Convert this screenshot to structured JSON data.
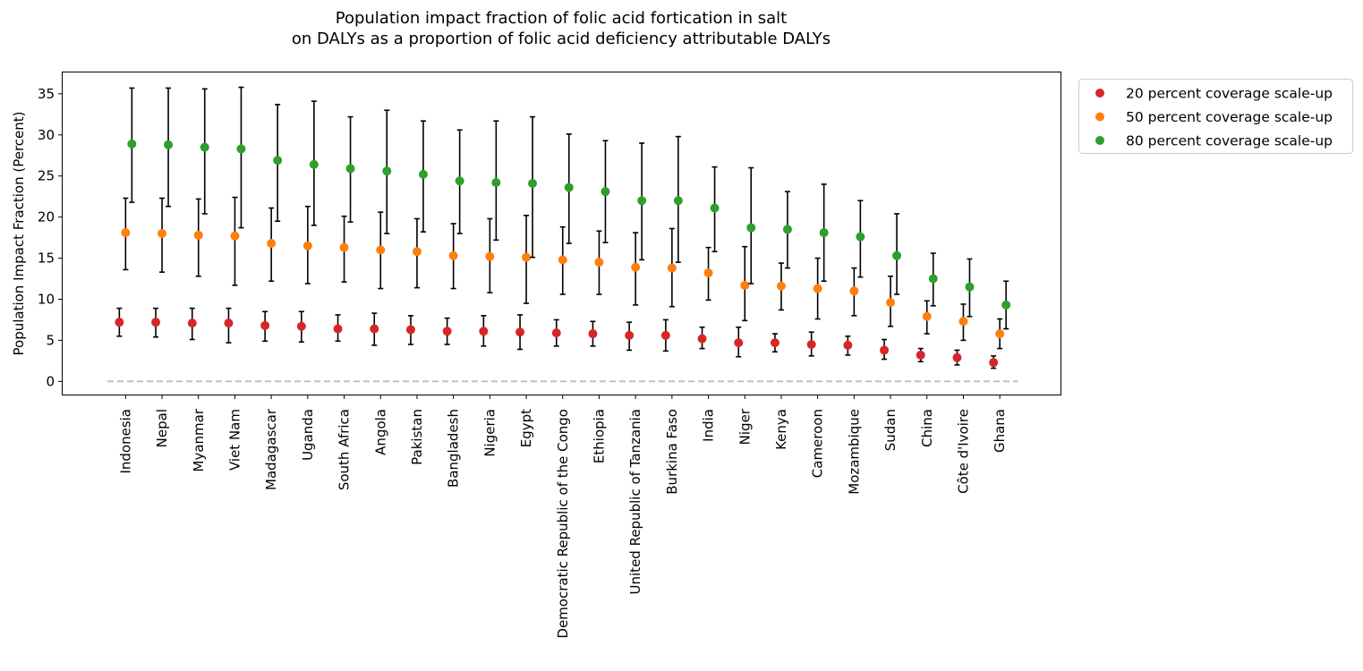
{
  "chart_data": {
    "type": "scatter",
    "title_lines": [
      "Population impact fraction of folic acid fortication in salt",
      "on DALYs as a proportion of folic acid deficiency attributable DALYs"
    ],
    "xlabel": "",
    "ylabel": "Population Impact Fraction (Percent)",
    "ylim": [
      -1.6,
      37.6
    ],
    "yticks": [
      0,
      5,
      10,
      15,
      20,
      25,
      30,
      35
    ],
    "grid": false,
    "legend_position": "outside-top-right",
    "reference_line": {
      "y": 0,
      "style": "dashed",
      "color": "#c0c0c0"
    },
    "categories": [
      "Indonesia",
      "Nepal",
      "Myanmar",
      "Viet Nam",
      "Madagascar",
      "Uganda",
      "South Africa",
      "Angola",
      "Pakistan",
      "Bangladesh",
      "Nigeria",
      "Egypt",
      "Democratic Republic of the Congo",
      "Ethiopia",
      "United Republic of Tanzania",
      "Burkina Faso",
      "India",
      "Niger",
      "Kenya",
      "Cameroon",
      "Mozambique",
      "Sudan",
      "China",
      "Côte d'Ivoire",
      "Ghana"
    ],
    "series": [
      {
        "name": "20 percent coverage scale-up",
        "color": "#d62728",
        "values": [
          7.2,
          7.2,
          7.1,
          7.1,
          6.8,
          6.7,
          6.4,
          6.4,
          6.3,
          6.1,
          6.1,
          6.0,
          5.9,
          5.8,
          5.6,
          5.6,
          5.2,
          4.7,
          4.7,
          4.5,
          4.4,
          3.8,
          3.2,
          2.9,
          2.3
        ],
        "lower": [
          5.5,
          5.4,
          5.1,
          4.7,
          4.9,
          4.8,
          4.9,
          4.4,
          4.5,
          4.5,
          4.3,
          3.9,
          4.3,
          4.3,
          3.8,
          3.7,
          4.0,
          3.0,
          3.6,
          3.1,
          3.2,
          2.7,
          2.4,
          2.0,
          1.6
        ],
        "upper": [
          8.9,
          8.9,
          8.9,
          8.9,
          8.5,
          8.5,
          8.1,
          8.3,
          8.0,
          7.7,
          8.0,
          8.1,
          7.5,
          7.3,
          7.2,
          7.5,
          6.6,
          6.6,
          5.8,
          6.0,
          5.5,
          5.1,
          4.0,
          3.8,
          3.1
        ]
      },
      {
        "name": "50 percent coverage scale-up",
        "color": "#ff7f0e",
        "values": [
          18.1,
          18.0,
          17.8,
          17.7,
          16.8,
          16.5,
          16.3,
          16.0,
          15.8,
          15.3,
          15.2,
          15.1,
          14.8,
          14.5,
          13.9,
          13.8,
          13.2,
          11.7,
          11.6,
          11.3,
          11.0,
          9.6,
          7.9,
          7.3,
          5.8
        ],
        "lower": [
          13.6,
          13.3,
          12.8,
          11.7,
          12.2,
          11.9,
          12.1,
          11.3,
          11.4,
          11.3,
          10.8,
          9.5,
          10.6,
          10.6,
          9.3,
          9.1,
          9.9,
          7.4,
          8.7,
          7.6,
          8.0,
          6.7,
          5.8,
          5.0,
          4.0
        ],
        "upper": [
          22.3,
          22.3,
          22.2,
          22.4,
          21.1,
          21.3,
          20.1,
          20.6,
          19.8,
          19.2,
          19.8,
          20.2,
          18.8,
          18.3,
          18.1,
          18.6,
          16.3,
          16.4,
          14.4,
          15.0,
          13.8,
          12.8,
          9.8,
          9.4,
          7.6
        ]
      },
      {
        "name": "80 percent coverage scale-up",
        "color": "#2ca02c",
        "values": [
          28.9,
          28.8,
          28.5,
          28.3,
          26.9,
          26.4,
          25.9,
          25.6,
          25.2,
          24.4,
          24.2,
          24.1,
          23.6,
          23.1,
          22.0,
          22.0,
          21.1,
          18.7,
          18.5,
          18.1,
          17.6,
          15.3,
          12.5,
          11.5,
          9.3
        ],
        "lower": [
          21.8,
          21.3,
          20.4,
          18.7,
          19.5,
          19.0,
          19.4,
          18.0,
          18.2,
          18.0,
          17.2,
          15.1,
          16.8,
          16.9,
          14.8,
          14.5,
          15.8,
          11.9,
          13.8,
          12.2,
          12.7,
          10.6,
          9.2,
          7.9,
          6.4
        ],
        "upper": [
          35.7,
          35.7,
          35.6,
          35.8,
          33.7,
          34.1,
          32.2,
          33.0,
          31.7,
          30.6,
          31.7,
          32.2,
          30.1,
          29.3,
          29.0,
          29.8,
          26.1,
          26.0,
          23.1,
          24.0,
          22.0,
          20.4,
          15.6,
          14.9,
          12.2
        ]
      }
    ]
  }
}
